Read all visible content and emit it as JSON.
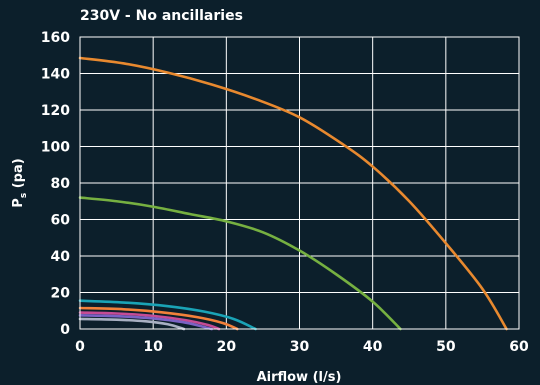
{
  "chart_data": {
    "type": "line",
    "title": "230V - No ancillaries",
    "xlabel": "Airflow (l/s)",
    "ylabel_main": "P",
    "ylabel_sub": "s",
    "ylabel_tail": " (pa)",
    "xlim": [
      0,
      60
    ],
    "ylim": [
      0,
      160
    ],
    "xticks": [
      0,
      10,
      20,
      30,
      40,
      50,
      60
    ],
    "yticks": [
      0,
      20,
      40,
      60,
      80,
      100,
      120,
      140,
      160
    ],
    "grid": true,
    "background": "#0c1f2b",
    "series": [
      {
        "color": "#e8892f",
        "points": [
          [
            0,
            148.5
          ],
          [
            6,
            145.5
          ],
          [
            12,
            140.5
          ],
          [
            18,
            134
          ],
          [
            24,
            126
          ],
          [
            30,
            116
          ],
          [
            36,
            101
          ],
          [
            40,
            89
          ],
          [
            45,
            70
          ],
          [
            50,
            47
          ],
          [
            55,
            22
          ],
          [
            58.3,
            0
          ]
        ]
      },
      {
        "color": "#76b041",
        "points": [
          [
            0,
            72
          ],
          [
            5,
            70
          ],
          [
            10,
            67
          ],
          [
            15,
            63
          ],
          [
            20,
            59
          ],
          [
            25,
            53
          ],
          [
            30,
            43
          ],
          [
            35,
            30
          ],
          [
            40,
            15
          ],
          [
            43.8,
            0
          ]
        ]
      },
      {
        "color": "#1aa3b6",
        "points": [
          [
            0,
            15.5
          ],
          [
            6,
            14.5
          ],
          [
            12,
            12.5
          ],
          [
            17,
            9.5
          ],
          [
            21,
            5.5
          ],
          [
            24,
            0
          ]
        ]
      },
      {
        "color": "#f2813a",
        "points": [
          [
            0,
            11.5
          ],
          [
            6,
            10.8
          ],
          [
            11,
            9.2
          ],
          [
            16,
            6.5
          ],
          [
            19.5,
            3.3
          ],
          [
            21.5,
            0
          ]
        ]
      },
      {
        "color": "#c54b95",
        "points": [
          [
            0,
            9
          ],
          [
            5,
            8.5
          ],
          [
            10,
            7.2
          ],
          [
            14.5,
            4.8
          ],
          [
            17.5,
            2.2
          ],
          [
            19,
            0
          ]
        ]
      },
      {
        "color": "#7a62c4",
        "points": [
          [
            0,
            7.5
          ],
          [
            5,
            7
          ],
          [
            10,
            5.8
          ],
          [
            14,
            3.8
          ],
          [
            16.5,
            1.6
          ],
          [
            18,
            0
          ]
        ]
      },
      {
        "color": "#a8b0c2",
        "points": [
          [
            0,
            5.5
          ],
          [
            5,
            5.1
          ],
          [
            9,
            4.2
          ],
          [
            12,
            2.6
          ],
          [
            14.2,
            0
          ]
        ]
      }
    ]
  }
}
